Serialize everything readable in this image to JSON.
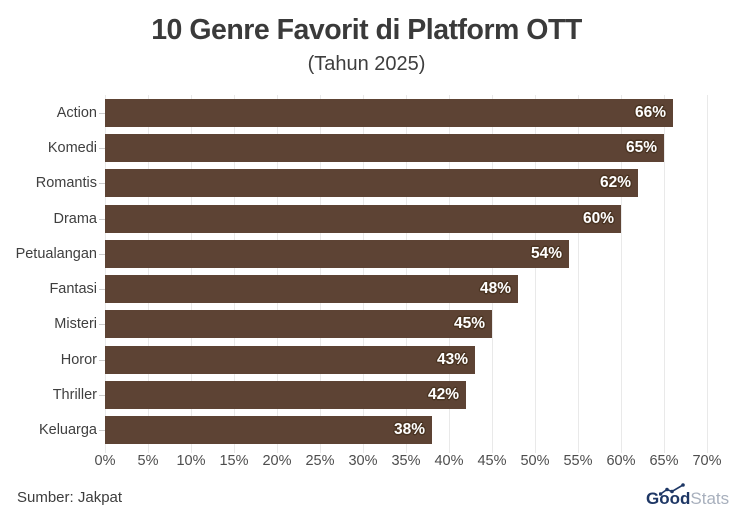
{
  "title": "10 Genre Favorit di Platform OTT",
  "subtitle": "(Tahun 2025)",
  "source": "Sumber: Jakpat",
  "logo": {
    "bold": "Good",
    "light": "Stats"
  },
  "colors": {
    "bar": "#5D4334",
    "bar_label_text": "#ffffff",
    "bar_label_outline": "#4a3422",
    "title_text": "#3a3a3a",
    "axis_text": "#4d4d4d",
    "category_text": "#3f3f3f",
    "grid": "#e9e9e9",
    "logo_navy": "#1e3765",
    "logo_gray": "#a8b0bd"
  },
  "chart_data": {
    "type": "bar",
    "orientation": "horizontal",
    "title": "10 Genre Favorit di Platform OTT",
    "subtitle": "(Tahun 2025)",
    "categories": [
      "Action",
      "Komedi",
      "Romantis",
      "Drama",
      "Petualangan",
      "Fantasi",
      "Misteri",
      "Horor",
      "Thriller",
      "Keluarga"
    ],
    "values": [
      66,
      65,
      62,
      60,
      54,
      48,
      45,
      43,
      42,
      38
    ],
    "data_labels": [
      "66%",
      "65%",
      "62%",
      "60%",
      "54%",
      "48%",
      "45%",
      "43%",
      "42%",
      "38%"
    ],
    "xlim": [
      0,
      70
    ],
    "xtick_step": 5,
    "xtick_labels": [
      "0%",
      "5%",
      "10%",
      "15%",
      "20%",
      "25%",
      "30%",
      "35%",
      "40%",
      "45%",
      "50%",
      "55%",
      "60%",
      "65%",
      "70%"
    ],
    "xlabel": "",
    "ylabel": "",
    "grid": "vertical",
    "legend": false
  }
}
